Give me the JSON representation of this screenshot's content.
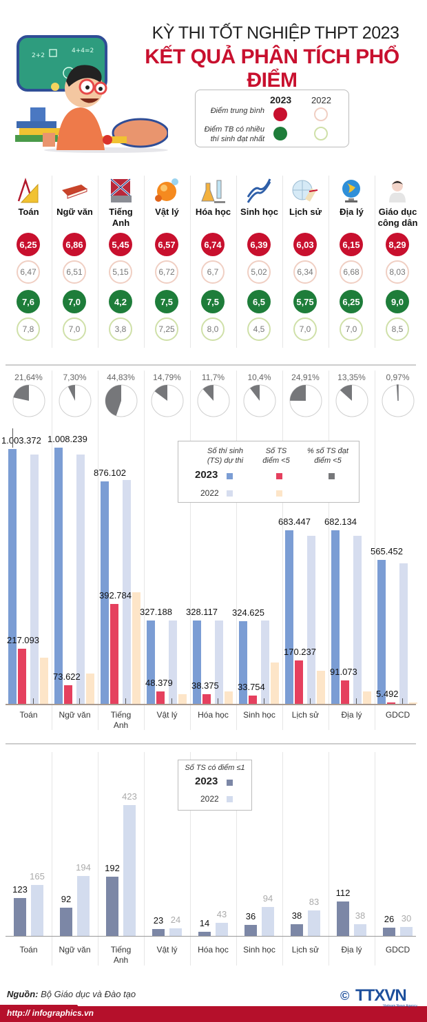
{
  "header": {
    "title_line1": "KỲ THI TỐT NGHIỆP THPT 2023",
    "title_line2": "KẾT QUẢ PHÂN TÍCH PHỔ ĐIỂM",
    "illustration": "student-with-chalkboard-illustration"
  },
  "legend_scores": {
    "year_2023": "2023",
    "year_2022": "2022",
    "avg_label": "Điểm trung bình",
    "mode_label_line1": "Điểm TB có nhiều",
    "mode_label_line2": "thí sinh đạt nhất"
  },
  "colors": {
    "title_red": "#c8102e",
    "avg_2023": "#c8102e",
    "avg_2022_ring": "#f0cfc3",
    "mode_2023": "#1e7d3a",
    "mode_2022_ring": "#cfe0a8",
    "participants_2023": "#7b9dd4",
    "participants_2022": "#d6ddef",
    "below5_2023": "#e5405e",
    "below5_2022": "#fde5c8",
    "pct_below5": "#76777a",
    "le1_2023": "#7c87a6",
    "le1_2022": "#d3dcee"
  },
  "subjects": [
    {
      "name_line1": "Toán",
      "name_line2": "",
      "icon": "ruler-compass-icon",
      "avg_2023": "6,25",
      "avg_2022": "6,47",
      "mode_2023": "7,6",
      "mode_2022": "7,8"
    },
    {
      "name_line1": "Ngữ văn",
      "name_line2": "",
      "icon": "book-icon",
      "avg_2023": "6,86",
      "avg_2022": "6,51",
      "mode_2023": "7,0",
      "mode_2022": "7,0"
    },
    {
      "name_line1": "Tiếng",
      "name_line2": "Anh",
      "icon": "english-book-icon",
      "avg_2023": "5,45",
      "avg_2022": "5,15",
      "mode_2023": "4,2",
      "mode_2022": "3,8"
    },
    {
      "name_line1": "Vật lý",
      "name_line2": "",
      "icon": "atom-ball-icon",
      "avg_2023": "6,57",
      "avg_2022": "6,72",
      "mode_2023": "7,5",
      "mode_2022": "7,25"
    },
    {
      "name_line1": "Hóa học",
      "name_line2": "",
      "icon": "flask-icon",
      "avg_2023": "6,74",
      "avg_2022": "6,7",
      "mode_2023": "7,5",
      "mode_2022": "8,0"
    },
    {
      "name_line1": "Sinh học",
      "name_line2": "",
      "icon": "dna-icon",
      "avg_2023": "6,39",
      "avg_2022": "5,02",
      "mode_2023": "6,5",
      "mode_2022": "4,5"
    },
    {
      "name_line1": "Lịch sử",
      "name_line2": "",
      "icon": "globe-scroll-icon",
      "avg_2023": "6,03",
      "avg_2022": "6,34",
      "mode_2023": "5,75",
      "mode_2022": "7,0"
    },
    {
      "name_line1": "Địa lý",
      "name_line2": "",
      "icon": "globe-icon",
      "avg_2023": "6,15",
      "avg_2022": "6,68",
      "mode_2023": "6,25",
      "mode_2022": "7,0"
    },
    {
      "name_line1": "Giáo dục",
      "name_line2": "công dân",
      "icon": "person-icon",
      "avg_2023": "8,29",
      "avg_2022": "8,03",
      "mode_2023": "9,0",
      "mode_2022": "8,5"
    }
  ],
  "legend_participants": {
    "col1_line1": "Số thí sinh",
    "col1_line2": "(TS) dự thi",
    "col2_line1": "Số TS",
    "col2_line2": "điểm <5",
    "col3_line1": "% số TS đạt",
    "col3_line2": "điểm <5",
    "year_2023": "2023",
    "year_2022": "2022"
  },
  "legend_le1": {
    "label": "Số TS có điểm ≤1",
    "year_2023": "2023",
    "year_2022": "2022"
  },
  "chart_data": [
    {
      "type": "pie",
      "title": "% số TS đạt điểm <5 (2023)",
      "categories": [
        "Toán",
        "Ngữ văn",
        "Tiếng Anh",
        "Vật lý",
        "Hóa học",
        "Sinh học",
        "Lịch sử",
        "Địa lý",
        "GDCD"
      ],
      "values": [
        21.64,
        7.3,
        44.83,
        14.79,
        11.7,
        10.4,
        24.91,
        13.35,
        0.97
      ],
      "labels": [
        "21,64%",
        "7,30%",
        "44,83%",
        "14,79%",
        "11,7%",
        "10,4%",
        "24,91%",
        "13,35%",
        "0,97%"
      ]
    },
    {
      "type": "bar",
      "title": "Số thí sinh dự thi và số TS điểm <5",
      "categories": [
        "Toán",
        "Ngữ văn",
        "Tiếng Anh",
        "Vật lý",
        "Hóa học",
        "Sinh học",
        "Lịch sử",
        "Địa lý",
        "GDCD"
      ],
      "category_labels": [
        [
          "Toán"
        ],
        [
          "Ngữ văn"
        ],
        [
          "Tiếng",
          "Anh"
        ],
        [
          "Vật lý"
        ],
        [
          "Hóa học"
        ],
        [
          "Sinh học"
        ],
        [
          "Lịch sử"
        ],
        [
          "Địa lý"
        ],
        [
          "GDCD"
        ]
      ],
      "series": [
        {
          "name": "Số thí sinh (TS) dự thi 2023",
          "values": [
            1003372,
            1008239,
            876102,
            327188,
            328117,
            324625,
            683447,
            682134,
            565452
          ],
          "labels": [
            "1.003.372",
            "1.008.239",
            "876.102",
            "327.188",
            "328.117",
            "324.625",
            "683.447",
            "682.134",
            "565.452"
          ]
        },
        {
          "name": "Số TS điểm <5 2023",
          "values": [
            217093,
            73622,
            392784,
            48379,
            38375,
            33754,
            170237,
            91073,
            5492
          ],
          "labels": [
            "217.093",
            "73.622",
            "392.784",
            "48.379",
            "38.375",
            "33.754",
            "170.237",
            "91.073",
            "5.492"
          ]
        },
        {
          "name": "Số thí sinh (TS) dự thi 2022",
          "values": [
            982000,
            982000,
            880000,
            327000,
            327000,
            327000,
            662000,
            660000,
            553000
          ]
        },
        {
          "name": "Số TS điểm <5 2022",
          "values": [
            182000,
            120000,
            440000,
            38000,
            48000,
            162000,
            129000,
            48000,
            3000
          ]
        }
      ],
      "ylim": [
        0,
        1008239
      ],
      "grid": false,
      "legend": "top-right"
    },
    {
      "type": "bar",
      "title": "Số TS có điểm ≤1",
      "categories": [
        "Toán",
        "Ngữ văn",
        "Tiếng Anh",
        "Vật lý",
        "Hóa học",
        "Sinh học",
        "Lịch sử",
        "Địa lý",
        "GDCD"
      ],
      "category_labels": [
        [
          "Toán"
        ],
        [
          "Ngữ văn"
        ],
        [
          "Tiếng",
          "Anh"
        ],
        [
          "Vật lý"
        ],
        [
          "Hóa học"
        ],
        [
          "Sinh học"
        ],
        [
          "Lịch sử"
        ],
        [
          "Địa lý"
        ],
        [
          "GDCD"
        ]
      ],
      "series": [
        {
          "name": "2023",
          "values": [
            123,
            92,
            192,
            23,
            14,
            36,
            38,
            112,
            26
          ]
        },
        {
          "name": "2022",
          "values": [
            165,
            194,
            423,
            24,
            43,
            94,
            83,
            38,
            30
          ]
        }
      ],
      "ylim": [
        0,
        423
      ],
      "grid": false,
      "legend": "top-center"
    }
  ],
  "footer": {
    "source_label": "Nguồn:",
    "source_text": "Bộ Giáo dục và Đào tạo",
    "url": "http:// infographics.vn",
    "logo_text": "TTXVN",
    "logo_sub": "Vietnam News Agency",
    "copyright": "©"
  }
}
